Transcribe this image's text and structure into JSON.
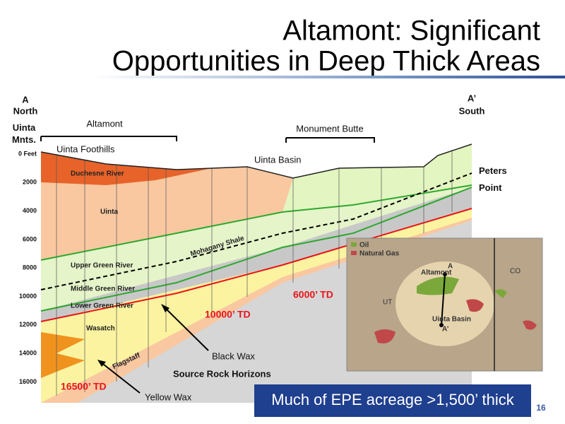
{
  "header": {
    "title": [
      "Altamont: Significant",
      "Opportunities in Deep Thick Areas"
    ]
  },
  "section": {
    "a_left": "A",
    "north": "North",
    "uinta_mnts": "Uinta\nMnts.",
    "a_right": "A’",
    "south": "South",
    "altamont": "Altamont",
    "monument_butte": "Monument Butte",
    "uinta_foothills": "Uinta Foothills",
    "uinta_basin": "Uinta Basin",
    "peters_point": "Peters\nPoint",
    "depths": [
      "0 Feet",
      "2000",
      "4000",
      "6000",
      "8000",
      "10000",
      "12000",
      "14000",
      "16000"
    ],
    "formations": [
      "Duchesne River",
      "Uinta",
      "Mohagany Shale",
      "Upper Green River",
      "Middle Green River",
      "Lower Green River",
      "Wasatch",
      "Flagstaff"
    ],
    "td_labels": [
      "16500’ TD",
      "10000’ TD",
      "6000’ TD"
    ],
    "callouts": [
      "Black Wax",
      "Source Rock Horizons",
      "Yellow Wax"
    ]
  },
  "map": {
    "legend": [
      "Oil",
      "Natural Gas"
    ],
    "states": [
      "UT",
      "CO"
    ],
    "altamont": "Altamont",
    "uinta_basin": "Uinta Basin",
    "a": "A",
    "a_prime": "A’"
  },
  "banner": "Much of EPE acreage >1,500’ thick",
  "page_number": "16"
}
